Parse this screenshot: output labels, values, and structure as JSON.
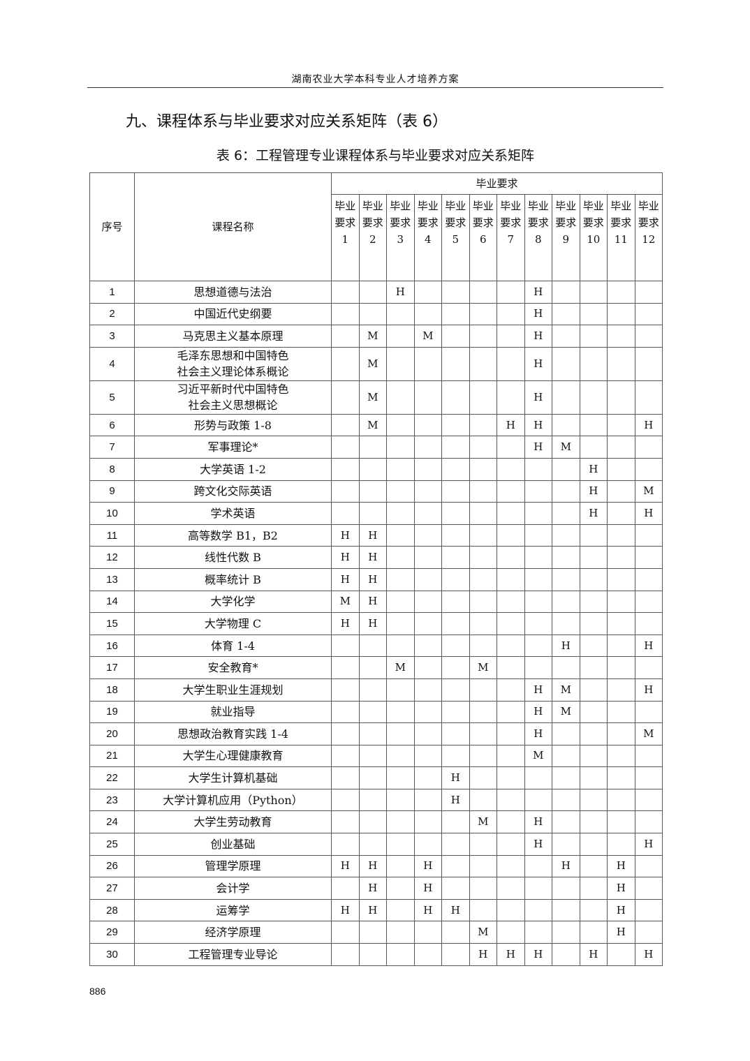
{
  "running_header": "湖南农业大学本科专业人才培养方案",
  "section_title": "九、课程体系与毕业要求对应关系矩阵（表 6）",
  "table_caption": "表 6：工程管理专业课程体系与毕业要求对应关系矩阵",
  "headers": {
    "index": "序号",
    "course": "课程名称",
    "group": "毕业要求",
    "requirements": [
      "毕业要求1",
      "毕业要求2",
      "毕业要求3",
      "毕业要求4",
      "毕业要求5",
      "毕业要求6",
      "毕业要求7",
      "毕业要求8",
      "毕业要求9",
      "毕业要求10",
      "毕业要求11",
      "毕业要求12"
    ]
  },
  "rows": [
    {
      "no": "1",
      "course": "思想道德与法治",
      "marks": [
        "",
        "",
        "H",
        "",
        "",
        "",
        "",
        "H",
        "",
        "",
        "",
        ""
      ]
    },
    {
      "no": "2",
      "course": "中国近代史纲要",
      "marks": [
        "",
        "",
        "",
        "",
        "",
        "",
        "",
        "H",
        "",
        "",
        "",
        ""
      ]
    },
    {
      "no": "3",
      "course": "马克思主义基本原理",
      "marks": [
        "",
        "M",
        "",
        "M",
        "",
        "",
        "",
        "H",
        "",
        "",
        "",
        ""
      ]
    },
    {
      "no": "4",
      "course": "毛泽东思想和中国特色\n社会主义理论体系概论",
      "marks": [
        "",
        "M",
        "",
        "",
        "",
        "",
        "",
        "H",
        "",
        "",
        "",
        ""
      ]
    },
    {
      "no": "5",
      "course": "习近平新时代中国特色\n社会主义思想概论",
      "marks": [
        "",
        "M",
        "",
        "",
        "",
        "",
        "",
        "H",
        "",
        "",
        "",
        ""
      ]
    },
    {
      "no": "6",
      "course": "形势与政策 1-8",
      "marks": [
        "",
        "M",
        "",
        "",
        "",
        "",
        "H",
        "H",
        "",
        "",
        "",
        "H"
      ]
    },
    {
      "no": "7",
      "course": "军事理论*",
      "marks": [
        "",
        "",
        "",
        "",
        "",
        "",
        "",
        "H",
        "M",
        "",
        "",
        ""
      ]
    },
    {
      "no": "8",
      "course": "大学英语 1-2",
      "marks": [
        "",
        "",
        "",
        "",
        "",
        "",
        "",
        "",
        "",
        "H",
        "",
        ""
      ]
    },
    {
      "no": "9",
      "course": "跨文化交际英语",
      "marks": [
        "",
        "",
        "",
        "",
        "",
        "",
        "",
        "",
        "",
        "H",
        "",
        "M"
      ]
    },
    {
      "no": "10",
      "course": "学术英语",
      "marks": [
        "",
        "",
        "",
        "",
        "",
        "",
        "",
        "",
        "",
        "H",
        "",
        "H"
      ]
    },
    {
      "no": "11",
      "course": "高等数学 B1，B2",
      "marks": [
        "H",
        "H",
        "",
        "",
        "",
        "",
        "",
        "",
        "",
        "",
        "",
        ""
      ]
    },
    {
      "no": "12",
      "course": "线性代数 B",
      "marks": [
        "H",
        "H",
        "",
        "",
        "",
        "",
        "",
        "",
        "",
        "",
        "",
        ""
      ]
    },
    {
      "no": "13",
      "course": "概率统计 B",
      "marks": [
        "H",
        "H",
        "",
        "",
        "",
        "",
        "",
        "",
        "",
        "",
        "",
        ""
      ]
    },
    {
      "no": "14",
      "course": "大学化学",
      "marks": [
        "M",
        "H",
        "",
        "",
        "",
        "",
        "",
        "",
        "",
        "",
        "",
        ""
      ]
    },
    {
      "no": "15",
      "course": "大学物理 C",
      "marks": [
        "H",
        "H",
        "",
        "",
        "",
        "",
        "",
        "",
        "",
        "",
        "",
        ""
      ]
    },
    {
      "no": "16",
      "course": "体育 1-4",
      "marks": [
        "",
        "",
        "",
        "",
        "",
        "",
        "",
        "",
        "H",
        "",
        "",
        "H"
      ]
    },
    {
      "no": "17",
      "course": "安全教育*",
      "marks": [
        "",
        "",
        "M",
        "",
        "",
        "M",
        "",
        "",
        "",
        "",
        "",
        ""
      ]
    },
    {
      "no": "18",
      "course": "大学生职业生涯规划",
      "marks": [
        "",
        "",
        "",
        "",
        "",
        "",
        "",
        "H",
        "M",
        "",
        "",
        "H"
      ]
    },
    {
      "no": "19",
      "course": "就业指导",
      "marks": [
        "",
        "",
        "",
        "",
        "",
        "",
        "",
        "H",
        "M",
        "",
        "",
        ""
      ]
    },
    {
      "no": "20",
      "course": "思想政治教育实践 1-4",
      "marks": [
        "",
        "",
        "",
        "",
        "",
        "",
        "",
        "H",
        "",
        "",
        "",
        "M"
      ]
    },
    {
      "no": "21",
      "course": "大学生心理健康教育",
      "marks": [
        "",
        "",
        "",
        "",
        "",
        "",
        "",
        "M",
        "",
        "",
        "",
        ""
      ]
    },
    {
      "no": "22",
      "course": "大学生计算机基础",
      "marks": [
        "",
        "",
        "",
        "",
        "H",
        "",
        "",
        "",
        "",
        "",
        "",
        ""
      ]
    },
    {
      "no": "23",
      "course": "大学计算机应用（Python）",
      "marks": [
        "",
        "",
        "",
        "",
        "H",
        "",
        "",
        "",
        "",
        "",
        "",
        ""
      ]
    },
    {
      "no": "24",
      "course": "大学生劳动教育",
      "marks": [
        "",
        "",
        "",
        "",
        "",
        "M",
        "",
        "H",
        "",
        "",
        "",
        ""
      ]
    },
    {
      "no": "25",
      "course": "创业基础",
      "marks": [
        "",
        "",
        "",
        "",
        "",
        "",
        "",
        "H",
        "",
        "",
        "",
        "H"
      ]
    },
    {
      "no": "26",
      "course": "管理学原理",
      "marks": [
        "H",
        "H",
        "",
        "H",
        "",
        "",
        "",
        "",
        "H",
        "",
        "H",
        ""
      ]
    },
    {
      "no": "27",
      "course": "会计学",
      "marks": [
        "",
        "H",
        "",
        "H",
        "",
        "",
        "",
        "",
        "",
        "",
        "H",
        ""
      ]
    },
    {
      "no": "28",
      "course": "运筹学",
      "marks": [
        "H",
        "H",
        "",
        "H",
        "H",
        "",
        "",
        "",
        "",
        "",
        "H",
        ""
      ]
    },
    {
      "no": "29",
      "course": "经济学原理",
      "marks": [
        "",
        "",
        "",
        "",
        "",
        "M",
        "",
        "",
        "",
        "",
        "H",
        ""
      ]
    },
    {
      "no": "30",
      "course": "工程管理专业导论",
      "marks": [
        "",
        "",
        "",
        "",
        "",
        "H",
        "H",
        "H",
        "",
        "H",
        "",
        "H"
      ]
    }
  ],
  "page_number": "886"
}
